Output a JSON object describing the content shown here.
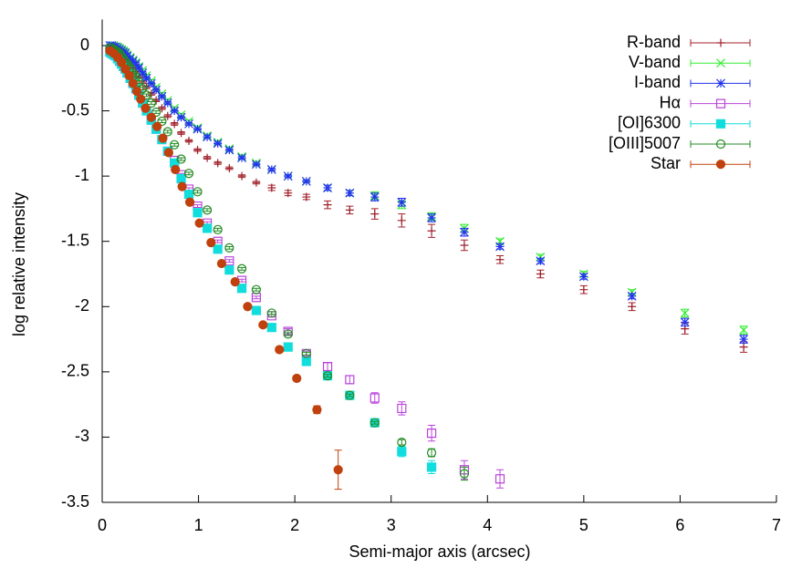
{
  "chart_data": {
    "type": "scatter",
    "xlabel": "Semi-major axis (arcsec)",
    "ylabel": "log relative intensity",
    "xlim": [
      0,
      7
    ],
    "ylim": [
      -3.5,
      0.2
    ],
    "xticks": [
      0,
      1,
      2,
      3,
      4,
      5,
      6,
      7
    ],
    "yticks": [
      0,
      -0.5,
      -1,
      -1.5,
      -2,
      -2.5,
      -3,
      -3.5
    ],
    "legend": "top-right",
    "series": [
      {
        "name": "R-band",
        "color": "#a0202a",
        "marker": "plus",
        "x": [
          0.08,
          0.1,
          0.12,
          0.14,
          0.16,
          0.18,
          0.2,
          0.22,
          0.24,
          0.26,
          0.29,
          0.32,
          0.35,
          0.38,
          0.42,
          0.46,
          0.51,
          0.56,
          0.62,
          0.68,
          0.75,
          0.82,
          0.9,
          0.99,
          1.09,
          1.2,
          1.32,
          1.45,
          1.6,
          1.76,
          1.93,
          2.12,
          2.34,
          2.57,
          2.83,
          3.11,
          3.42,
          3.76,
          4.13,
          4.55,
          5.0,
          5.5,
          6.05,
          6.66
        ],
        "values": [
          -0.01,
          -0.01,
          -0.02,
          -0.03,
          -0.04,
          -0.05,
          -0.06,
          -0.08,
          -0.1,
          -0.12,
          -0.14,
          -0.17,
          -0.2,
          -0.24,
          -0.28,
          -0.32,
          -0.37,
          -0.42,
          -0.48,
          -0.54,
          -0.6,
          -0.67,
          -0.73,
          -0.8,
          -0.86,
          -0.9,
          -0.94,
          -1.0,
          -1.05,
          -1.09,
          -1.13,
          -1.16,
          -1.22,
          -1.26,
          -1.29,
          -1.34,
          -1.42,
          -1.53,
          -1.64,
          -1.75,
          -1.87,
          -2.0,
          -2.17,
          -2.31
        ],
        "errors": [
          0.01,
          0.01,
          0.01,
          0.01,
          0.01,
          0.01,
          0.01,
          0.01,
          0.01,
          0.01,
          0.01,
          0.01,
          0.01,
          0.01,
          0.01,
          0.01,
          0.01,
          0.01,
          0.01,
          0.01,
          0.01,
          0.01,
          0.01,
          0.01,
          0.01,
          0.01,
          0.01,
          0.01,
          0.01,
          0.02,
          0.02,
          0.02,
          0.03,
          0.03,
          0.04,
          0.05,
          0.05,
          0.04,
          0.03,
          0.03,
          0.03,
          0.03,
          0.04,
          0.04
        ]
      },
      {
        "name": "V-band",
        "color": "#33ee33",
        "marker": "cross",
        "x": [
          0.08,
          0.1,
          0.12,
          0.14,
          0.16,
          0.18,
          0.2,
          0.22,
          0.24,
          0.26,
          0.29,
          0.32,
          0.35,
          0.38,
          0.42,
          0.46,
          0.51,
          0.56,
          0.62,
          0.68,
          0.75,
          0.82,
          0.9,
          0.99,
          1.09,
          1.2,
          1.32,
          1.45,
          1.6,
          1.76,
          1.93,
          2.12,
          2.34,
          2.57,
          2.83,
          3.11,
          3.42,
          3.76,
          4.13,
          4.55,
          5.0,
          5.5,
          6.05,
          6.66
        ],
        "values": [
          0,
          0,
          0,
          -0.01,
          -0.01,
          -0.02,
          -0.03,
          -0.04,
          -0.05,
          -0.07,
          -0.09,
          -0.11,
          -0.13,
          -0.16,
          -0.19,
          -0.23,
          -0.27,
          -0.32,
          -0.37,
          -0.42,
          -0.48,
          -0.53,
          -0.58,
          -0.63,
          -0.69,
          -0.74,
          -0.79,
          -0.85,
          -0.9,
          -0.95,
          -1.0,
          -1.04,
          -1.09,
          -1.13,
          -1.15,
          -1.22,
          -1.31,
          -1.4,
          -1.5,
          -1.62,
          -1.75,
          -1.89,
          -2.05,
          -2.18
        ],
        "errors": [
          0.01,
          0.01,
          0.01,
          0.01,
          0.01,
          0.01,
          0.01,
          0.01,
          0.01,
          0.01,
          0.01,
          0.01,
          0.01,
          0.01,
          0.01,
          0.01,
          0.01,
          0.01,
          0.01,
          0.01,
          0.01,
          0.01,
          0.01,
          0.01,
          0.01,
          0.01,
          0.01,
          0.01,
          0.01,
          0.01,
          0.01,
          0.01,
          0.02,
          0.02,
          0.03,
          0.03,
          0.03,
          0.03,
          0.02,
          0.02,
          0.02,
          0.02,
          0.03,
          0.03
        ]
      },
      {
        "name": "I-band",
        "color": "#2233ee",
        "marker": "asterisk",
        "x": [
          0.08,
          0.1,
          0.12,
          0.14,
          0.16,
          0.18,
          0.2,
          0.22,
          0.24,
          0.26,
          0.29,
          0.32,
          0.35,
          0.38,
          0.42,
          0.46,
          0.51,
          0.56,
          0.62,
          0.68,
          0.75,
          0.82,
          0.9,
          0.99,
          1.09,
          1.2,
          1.32,
          1.45,
          1.6,
          1.76,
          1.93,
          2.12,
          2.34,
          2.57,
          2.83,
          3.11,
          3.42,
          3.76,
          4.13,
          4.55,
          5.0,
          5.5,
          6.05,
          6.66
        ],
        "values": [
          0,
          0,
          -0.01,
          -0.01,
          -0.02,
          -0.03,
          -0.04,
          -0.05,
          -0.06,
          -0.08,
          -0.1,
          -0.12,
          -0.14,
          -0.17,
          -0.21,
          -0.25,
          -0.29,
          -0.34,
          -0.39,
          -0.44,
          -0.5,
          -0.55,
          -0.6,
          -0.64,
          -0.7,
          -0.75,
          -0.8,
          -0.86,
          -0.91,
          -0.95,
          -1.0,
          -1.04,
          -1.09,
          -1.13,
          -1.16,
          -1.2,
          -1.32,
          -1.43,
          -1.54,
          -1.65,
          -1.77,
          -1.92,
          -2.12,
          -2.25
        ],
        "errors": [
          0.01,
          0.01,
          0.01,
          0.01,
          0.01,
          0.01,
          0.01,
          0.01,
          0.01,
          0.01,
          0.01,
          0.01,
          0.01,
          0.01,
          0.01,
          0.01,
          0.01,
          0.01,
          0.01,
          0.01,
          0.01,
          0.01,
          0.01,
          0.01,
          0.01,
          0.01,
          0.01,
          0.01,
          0.01,
          0.01,
          0.01,
          0.01,
          0.02,
          0.02,
          0.03,
          0.03,
          0.03,
          0.03,
          0.02,
          0.02,
          0.02,
          0.02,
          0.03,
          0.03
        ]
      },
      {
        "name": "Hα",
        "color": "#bb44dd",
        "marker": "square-open",
        "x": [
          0.08,
          0.1,
          0.12,
          0.14,
          0.16,
          0.18,
          0.2,
          0.22,
          0.24,
          0.26,
          0.29,
          0.32,
          0.35,
          0.38,
          0.42,
          0.46,
          0.51,
          0.56,
          0.62,
          0.68,
          0.75,
          0.82,
          0.9,
          0.99,
          1.09,
          1.2,
          1.32,
          1.45,
          1.6,
          1.76,
          1.93,
          2.12,
          2.34,
          2.57,
          2.83,
          3.11,
          3.42,
          3.76,
          4.13
        ],
        "values": [
          -0.05,
          -0.06,
          -0.07,
          -0.08,
          -0.1,
          -0.12,
          -0.14,
          -0.16,
          -0.18,
          -0.21,
          -0.25,
          -0.29,
          -0.33,
          -0.38,
          -0.44,
          -0.5,
          -0.57,
          -0.64,
          -0.72,
          -0.81,
          -0.88,
          -0.99,
          -1.1,
          -1.23,
          -1.36,
          -1.5,
          -1.65,
          -1.8,
          -1.93,
          -2.07,
          -2.19,
          -2.36,
          -2.46,
          -2.56,
          -2.7,
          -2.78,
          -2.97,
          -3.25,
          -3.32
        ],
        "errors": [
          0.01,
          0.01,
          0.01,
          0.01,
          0.01,
          0.01,
          0.01,
          0.01,
          0.01,
          0.01,
          0.01,
          0.01,
          0.01,
          0.01,
          0.01,
          0.01,
          0.01,
          0.01,
          0.01,
          0.01,
          0.01,
          0.01,
          0.01,
          0.01,
          0.01,
          0.01,
          0.01,
          0.01,
          0.01,
          0.01,
          0.02,
          0.02,
          0.03,
          0.03,
          0.04,
          0.05,
          0.06,
          0.07,
          0.07
        ]
      },
      {
        "name": "[OI]6300",
        "color": "#11dddd",
        "marker": "square",
        "x": [
          0.08,
          0.1,
          0.12,
          0.14,
          0.16,
          0.18,
          0.2,
          0.22,
          0.24,
          0.26,
          0.29,
          0.32,
          0.35,
          0.38,
          0.42,
          0.46,
          0.51,
          0.56,
          0.62,
          0.68,
          0.75,
          0.82,
          0.9,
          0.99,
          1.09,
          1.2,
          1.32,
          1.45,
          1.6,
          1.76,
          1.93,
          2.12,
          2.34,
          2.57,
          2.83,
          3.11,
          3.42
        ],
        "values": [
          -0.05,
          -0.06,
          -0.07,
          -0.08,
          -0.1,
          -0.12,
          -0.14,
          -0.16,
          -0.18,
          -0.21,
          -0.25,
          -0.29,
          -0.33,
          -0.38,
          -0.44,
          -0.5,
          -0.57,
          -0.64,
          -0.72,
          -0.81,
          -0.9,
          -1.02,
          -1.14,
          -1.28,
          -1.4,
          -1.56,
          -1.72,
          -1.86,
          -2.03,
          -2.16,
          -2.31,
          -2.42,
          -2.53,
          -2.68,
          -2.89,
          -3.11,
          -3.23
        ],
        "errors": [
          0.01,
          0.01,
          0.01,
          0.01,
          0.01,
          0.01,
          0.01,
          0.01,
          0.01,
          0.01,
          0.01,
          0.01,
          0.01,
          0.01,
          0.01,
          0.01,
          0.01,
          0.01,
          0.01,
          0.01,
          0.01,
          0.01,
          0.01,
          0.01,
          0.01,
          0.01,
          0.01,
          0.01,
          0.01,
          0.01,
          0.01,
          0.01,
          0.01,
          0.01,
          0.02,
          0.04,
          0.05
        ]
      },
      {
        "name": "[OIII]5007",
        "color": "#228b22",
        "marker": "circle-open",
        "x": [
          0.08,
          0.1,
          0.12,
          0.14,
          0.16,
          0.18,
          0.2,
          0.22,
          0.24,
          0.26,
          0.29,
          0.32,
          0.35,
          0.38,
          0.42,
          0.46,
          0.51,
          0.56,
          0.62,
          0.68,
          0.75,
          0.82,
          0.9,
          0.99,
          1.09,
          1.2,
          1.32,
          1.45,
          1.6,
          1.76,
          1.93,
          2.12,
          2.34,
          2.57,
          2.83,
          3.11,
          3.42,
          3.76
        ],
        "values": [
          -0.02,
          -0.02,
          -0.03,
          -0.04,
          -0.05,
          -0.06,
          -0.08,
          -0.1,
          -0.12,
          -0.14,
          -0.17,
          -0.21,
          -0.24,
          -0.28,
          -0.33,
          -0.38,
          -0.44,
          -0.51,
          -0.58,
          -0.66,
          -0.76,
          -0.87,
          -0.98,
          -1.12,
          -1.26,
          -1.41,
          -1.55,
          -1.71,
          -1.87,
          -2.05,
          -2.21,
          -2.36,
          -2.53,
          -2.68,
          -2.89,
          -3.04,
          -3.12,
          -3.28
        ],
        "errors": [
          0.01,
          0.01,
          0.01,
          0.01,
          0.01,
          0.01,
          0.01,
          0.01,
          0.01,
          0.01,
          0.01,
          0.01,
          0.01,
          0.01,
          0.01,
          0.01,
          0.01,
          0.01,
          0.01,
          0.01,
          0.01,
          0.01,
          0.01,
          0.01,
          0.01,
          0.01,
          0.01,
          0.01,
          0.01,
          0.01,
          0.01,
          0.01,
          0.01,
          0.01,
          0.01,
          0.02,
          0.03,
          0.05
        ]
      },
      {
        "name": "Star",
        "color": "#c0400e",
        "marker": "circle",
        "x": [
          0.08,
          0.12,
          0.16,
          0.2,
          0.24,
          0.28,
          0.32,
          0.36,
          0.4,
          0.45,
          0.51,
          0.57,
          0.63,
          0.69,
          0.76,
          0.83,
          0.91,
          1.01,
          1.13,
          1.24,
          1.38,
          1.51,
          1.67,
          1.84,
          2.02,
          2.23,
          2.45
        ],
        "values": [
          -0.04,
          -0.06,
          -0.09,
          -0.13,
          -0.18,
          -0.23,
          -0.29,
          -0.35,
          -0.41,
          -0.48,
          -0.55,
          -0.62,
          -0.71,
          -0.82,
          -0.95,
          -1.08,
          -1.2,
          -1.36,
          -1.51,
          -1.67,
          -1.81,
          -2.0,
          -2.14,
          -2.33,
          -2.55,
          -2.79,
          -3.25
        ],
        "errors": [
          0.01,
          0.01,
          0.01,
          0.01,
          0.01,
          0.01,
          0.01,
          0.01,
          0.01,
          0.01,
          0.01,
          0.01,
          0.01,
          0.01,
          0.01,
          0.01,
          0.01,
          0.01,
          0.01,
          0.01,
          0.01,
          0.01,
          0.01,
          0.01,
          0.01,
          0.03,
          0.15
        ]
      }
    ]
  }
}
